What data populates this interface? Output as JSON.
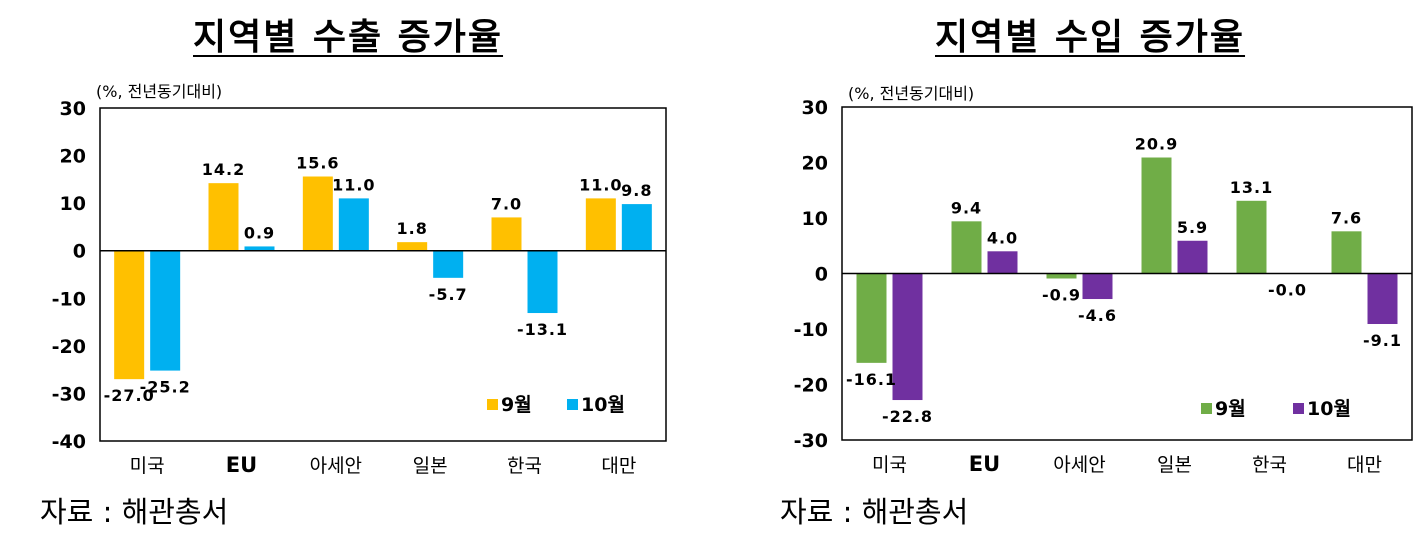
{
  "colors": {
    "export_sep": "#FFC000",
    "export_oct": "#00B0F0",
    "import_sep": "#70AD47",
    "import_oct": "#7030A0"
  },
  "chart_data": [
    {
      "type": "bar",
      "title": "지역별 수출 증가율",
      "unit_note": "(%, 전년동기대비)",
      "categories": [
        "미국",
        "EU",
        "아세안",
        "일본",
        "한국",
        "대만"
      ],
      "series": [
        {
          "name": "9월",
          "values": [
            -27.0,
            14.2,
            15.6,
            1.8,
            7.0,
            11.0
          ],
          "labels": [
            "-27.0",
            "14.2",
            "15.6",
            "1.8",
            "7.0",
            "11.0"
          ]
        },
        {
          "name": "10월",
          "values": [
            -25.2,
            0.9,
            11.0,
            -5.7,
            -13.1,
            9.8
          ],
          "labels": [
            "-25.2",
            "0.9",
            "11.0",
            "-5.7",
            "-13.1",
            "9.8"
          ]
        }
      ],
      "yticks": [
        "30",
        "20",
        "10",
        "0",
        "-10",
        "-20",
        "-30",
        "-40"
      ],
      "ylim": [
        -40,
        30
      ],
      "legend_position": "bottom-right",
      "source": "자료 :  해관총서"
    },
    {
      "type": "bar",
      "title": "지역별 수입 증가율",
      "unit_note": "(%, 전년동기대비)",
      "categories": [
        "미국",
        "EU",
        "아세안",
        "일본",
        "한국",
        "대만"
      ],
      "series": [
        {
          "name": "9월",
          "values": [
            -16.1,
            9.4,
            -0.9,
            20.9,
            13.1,
            7.6
          ],
          "labels": [
            "-16.1",
            "9.4",
            "-0.9",
            "20.9",
            "13.1",
            "7.6"
          ]
        },
        {
          "name": "10월",
          "values": [
            -22.8,
            4.0,
            -4.6,
            5.9,
            -0.0,
            -9.1
          ],
          "labels": [
            "-22.8",
            "4.0",
            "-4.6",
            "5.9",
            "-0.0",
            "-9.1"
          ]
        }
      ],
      "yticks": [
        "30",
        "20",
        "10",
        "0",
        "-10",
        "-20",
        "-30"
      ],
      "ylim": [
        -30,
        30
      ],
      "legend_position": "bottom-right",
      "source": "자료 :  해관총서"
    }
  ]
}
